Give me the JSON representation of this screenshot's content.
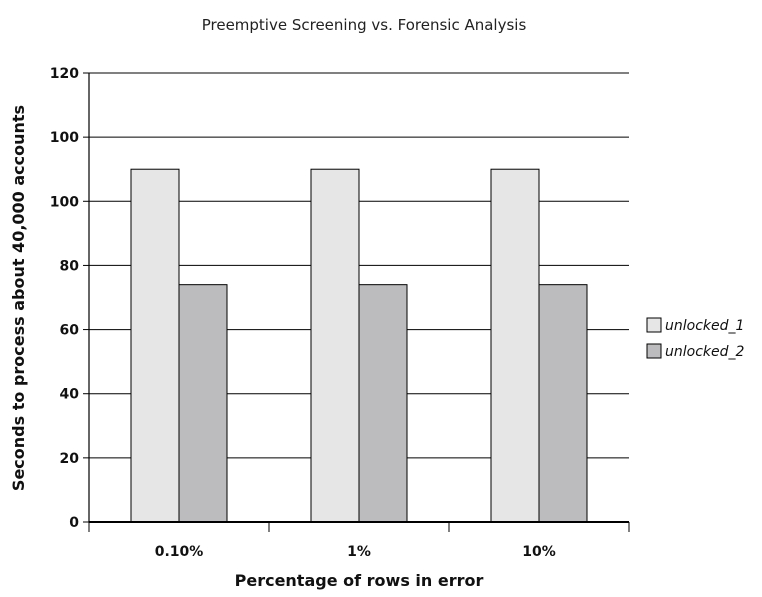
{
  "chart_data": {
    "type": "bar",
    "title": "Preemptive Screening vs. Forensic Analysis",
    "xlabel": "Percentage of rows in error",
    "ylabel": "Seconds to process about 40,000 accounts",
    "categories": [
      "0.10%",
      "1%",
      "10%"
    ],
    "y_tick_labels": [
      "0",
      "20",
      "40",
      "60",
      "80",
      "100",
      "100",
      "120"
    ],
    "tick_count": 8,
    "series": [
      {
        "name": "unlocked_1",
        "values": [
          110,
          110,
          110
        ],
        "color": "#e6e6e6"
      },
      {
        "name": "unlocked_2",
        "values": [
          74,
          74,
          74
        ],
        "color": "#bcbcbe"
      }
    ],
    "ylim": [
      0,
      140
    ],
    "grid": true,
    "legend_position": "right"
  }
}
